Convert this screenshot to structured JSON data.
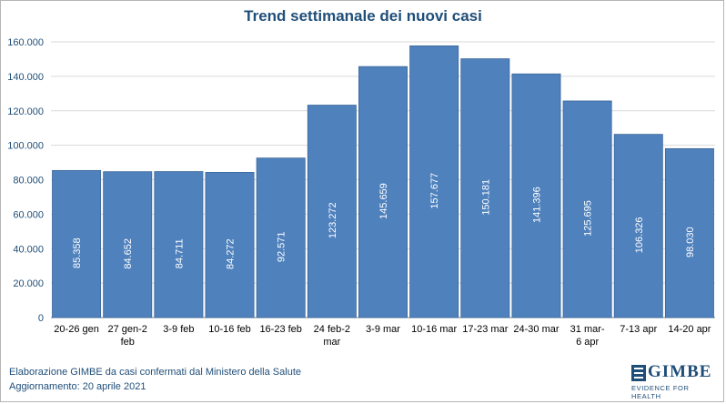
{
  "chart_data": {
    "type": "bar",
    "title": "Trend settimanale dei nuovi casi",
    "categories": [
      "20-26 gen",
      "27 gen-2 feb",
      "3-9 feb",
      "10-16 feb",
      "16-23 feb",
      "24 feb-2 mar",
      "3-9 mar",
      "10-16 mar",
      "17-23 mar",
      "24-30 mar",
      "31 mar-6 apr",
      "7-13 apr",
      "14-20 apr"
    ],
    "category_lines": [
      [
        "20-26 gen"
      ],
      [
        "27 gen-2",
        "feb"
      ],
      [
        "3-9 feb"
      ],
      [
        "10-16 feb"
      ],
      [
        "16-23 feb"
      ],
      [
        "24 feb-2",
        "mar"
      ],
      [
        "3-9 mar"
      ],
      [
        "10-16 mar"
      ],
      [
        "17-23 mar"
      ],
      [
        "24-30 mar"
      ],
      [
        "31 mar-",
        "6 apr"
      ],
      [
        "7-13 apr"
      ],
      [
        "14-20 apr"
      ]
    ],
    "values": [
      85358,
      84652,
      84711,
      84272,
      92571,
      123272,
      145659,
      157677,
      150181,
      141396,
      125695,
      106326,
      98030
    ],
    "data_labels": [
      "85.358",
      "84.652",
      "84.711",
      "84.272",
      "92.571",
      "123.272",
      "145.659",
      "157.677",
      "150.181",
      "141.396",
      "125.695",
      "106.326",
      "98.030"
    ],
    "ylim": [
      0,
      160000
    ],
    "yticks": [
      0,
      20000,
      40000,
      60000,
      80000,
      100000,
      120000,
      140000,
      160000
    ],
    "ytick_labels": [
      "0",
      "20.000",
      "40.000",
      "60.000",
      "80.000",
      "100.000",
      "120.000",
      "140.000",
      "160.000"
    ],
    "xlabel": "",
    "ylabel": "",
    "grid": true,
    "bar_color": "#4f81bd",
    "bar_edge_color": "#3a6699",
    "grid_color": "#d9d9d9",
    "text_color": "#1f4e79"
  },
  "footer": {
    "line1": "Elaborazione GIMBE da casi confermati dal Ministero della Salute",
    "line2": "Aggiornamento: 20 aprile 2021"
  },
  "logo": {
    "word": "GIMBE",
    "tagline": "EVIDENCE FOR HEALTH",
    "icon": "gimbe-logo-icon"
  }
}
